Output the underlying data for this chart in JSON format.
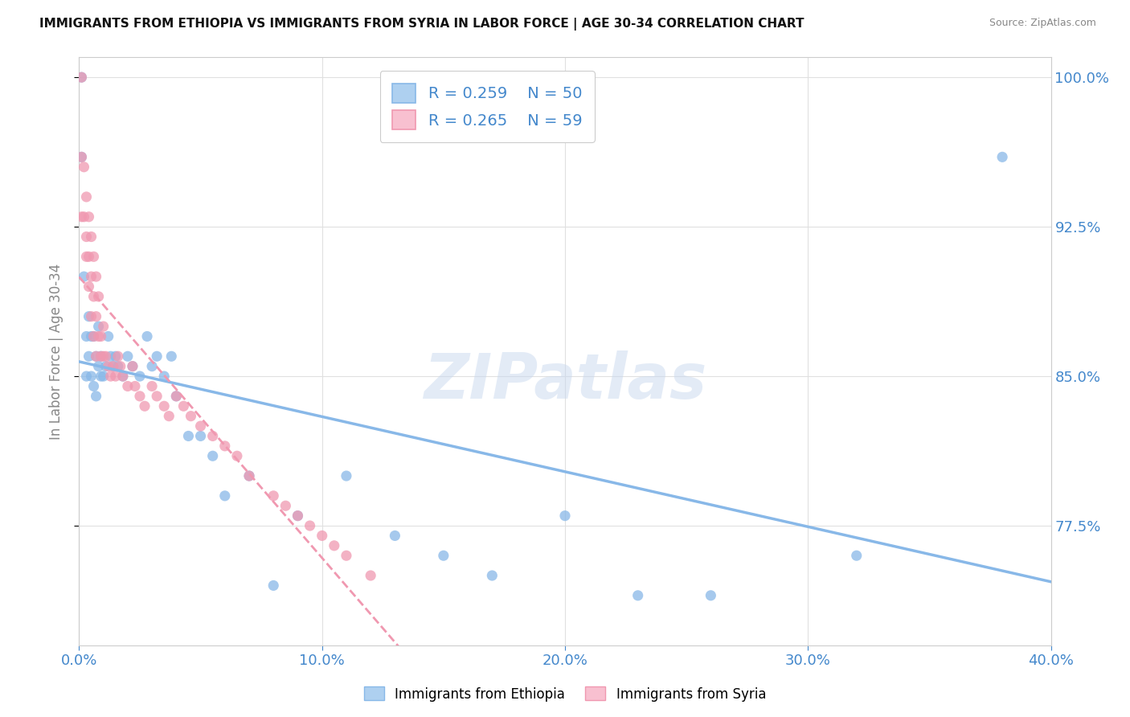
{
  "title": "IMMIGRANTS FROM ETHIOPIA VS IMMIGRANTS FROM SYRIA IN LABOR FORCE | AGE 30-34 CORRELATION CHART",
  "source": "Source: ZipAtlas.com",
  "watermark": "ZIPatlas",
  "legend_ethiopia": {
    "R": 0.259,
    "N": 50,
    "color": "#aed0f0"
  },
  "legend_syria": {
    "R": 0.265,
    "N": 59,
    "color": "#f8c0d0"
  },
  "ethiopia_color": "#88b8e8",
  "syria_color": "#f098b0",
  "xlim": [
    0.0,
    0.4
  ],
  "ylim": [
    0.715,
    1.01
  ],
  "ylabel_ticks": [
    0.775,
    0.85,
    0.925,
    1.0
  ],
  "ylabel_labels": [
    "77.5%",
    "85.0%",
    "92.5%",
    "100.0%"
  ],
  "xticks": [
    0.0,
    0.1,
    0.2,
    0.3,
    0.4
  ],
  "ethiopia_x": [
    0.001,
    0.001,
    0.002,
    0.003,
    0.003,
    0.004,
    0.004,
    0.005,
    0.005,
    0.006,
    0.006,
    0.007,
    0.007,
    0.008,
    0.008,
    0.009,
    0.009,
    0.01,
    0.011,
    0.012,
    0.013,
    0.014,
    0.015,
    0.016,
    0.018,
    0.02,
    0.022,
    0.025,
    0.028,
    0.03,
    0.032,
    0.035,
    0.038,
    0.04,
    0.045,
    0.05,
    0.055,
    0.06,
    0.07,
    0.08,
    0.09,
    0.11,
    0.13,
    0.15,
    0.17,
    0.2,
    0.23,
    0.26,
    0.32,
    0.38
  ],
  "ethiopia_y": [
    1.0,
    0.96,
    0.9,
    0.87,
    0.85,
    0.86,
    0.88,
    0.85,
    0.87,
    0.845,
    0.87,
    0.84,
    0.86,
    0.855,
    0.875,
    0.85,
    0.86,
    0.85,
    0.855,
    0.87,
    0.86,
    0.855,
    0.86,
    0.855,
    0.85,
    0.86,
    0.855,
    0.85,
    0.87,
    0.855,
    0.86,
    0.85,
    0.86,
    0.84,
    0.82,
    0.82,
    0.81,
    0.79,
    0.8,
    0.745,
    0.78,
    0.8,
    0.77,
    0.76,
    0.75,
    0.78,
    0.74,
    0.74,
    0.76,
    0.96
  ],
  "syria_x": [
    0.001,
    0.001,
    0.001,
    0.002,
    0.002,
    0.003,
    0.003,
    0.003,
    0.004,
    0.004,
    0.004,
    0.005,
    0.005,
    0.005,
    0.006,
    0.006,
    0.006,
    0.007,
    0.007,
    0.007,
    0.008,
    0.008,
    0.009,
    0.009,
    0.01,
    0.01,
    0.011,
    0.012,
    0.013,
    0.014,
    0.015,
    0.016,
    0.017,
    0.018,
    0.02,
    0.022,
    0.023,
    0.025,
    0.027,
    0.03,
    0.032,
    0.035,
    0.037,
    0.04,
    0.043,
    0.046,
    0.05,
    0.055,
    0.06,
    0.065,
    0.07,
    0.08,
    0.085,
    0.09,
    0.095,
    0.1,
    0.105,
    0.11,
    0.12
  ],
  "syria_y": [
    1.0,
    0.96,
    0.93,
    0.955,
    0.93,
    0.94,
    0.92,
    0.91,
    0.93,
    0.91,
    0.895,
    0.88,
    0.9,
    0.92,
    0.87,
    0.89,
    0.91,
    0.88,
    0.9,
    0.86,
    0.87,
    0.89,
    0.87,
    0.86,
    0.875,
    0.86,
    0.86,
    0.855,
    0.85,
    0.855,
    0.85,
    0.86,
    0.855,
    0.85,
    0.845,
    0.855,
    0.845,
    0.84,
    0.835,
    0.845,
    0.84,
    0.835,
    0.83,
    0.84,
    0.835,
    0.83,
    0.825,
    0.82,
    0.815,
    0.81,
    0.8,
    0.79,
    0.785,
    0.78,
    0.775,
    0.77,
    0.765,
    0.76,
    0.75
  ]
}
